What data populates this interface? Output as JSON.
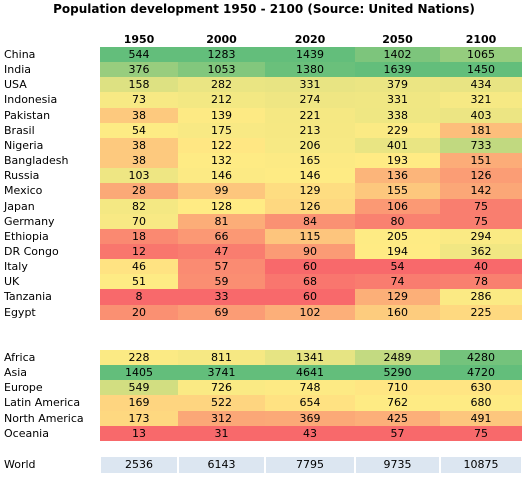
{
  "header": {
    "title": "Population development 1950 - 2100 (Source: United Nations)"
  },
  "table": {
    "columns": [
      "1950",
      "2000",
      "2020",
      "2050",
      "2100"
    ],
    "countries": [
      [
        "China",
        544,
        1283,
        1439,
        1402,
        1065
      ],
      [
        "India",
        376,
        1053,
        1380,
        1639,
        1450
      ],
      [
        "USA",
        158,
        282,
        331,
        379,
        434
      ],
      [
        "Indonesia",
        73,
        212,
        274,
        331,
        321
      ],
      [
        "Pakistan",
        38,
        139,
        221,
        338,
        403
      ],
      [
        "Brasil",
        54,
        175,
        213,
        229,
        181
      ],
      [
        "Nigeria",
        38,
        122,
        206,
        401,
        733
      ],
      [
        "Bangladesh",
        38,
        132,
        165,
        193,
        151
      ],
      [
        "Russia",
        103,
        146,
        146,
        136,
        126
      ],
      [
        "Mexico",
        28,
        99,
        129,
        155,
        142
      ],
      [
        "Japan",
        82,
        128,
        126,
        106,
        75
      ],
      [
        "Germany",
        70,
        81,
        84,
        80,
        75
      ],
      [
        "Ethiopia",
        18,
        66,
        115,
        205,
        294
      ],
      [
        "DR Congo",
        12,
        47,
        90,
        194,
        362
      ],
      [
        "Italy",
        46,
        57,
        60,
        54,
        40
      ],
      [
        "UK",
        51,
        59,
        68,
        74,
        78
      ],
      [
        "Tanzania",
        8,
        33,
        60,
        129,
        286
      ],
      [
        "Egypt",
        20,
        69,
        102,
        160,
        225
      ]
    ],
    "regions": [
      [
        "Africa",
        228,
        811,
        1341,
        2489,
        4280
      ],
      [
        "Asia",
        1405,
        3741,
        4641,
        5290,
        4720
      ],
      [
        "Europe",
        549,
        726,
        748,
        710,
        630
      ],
      [
        "Latin America",
        169,
        522,
        654,
        762,
        680
      ],
      [
        "North America",
        173,
        312,
        369,
        425,
        491
      ],
      [
        "Oceania",
        13,
        31,
        43,
        57,
        75
      ]
    ],
    "world": [
      "World",
      2536,
      6143,
      7795,
      9735,
      10875
    ]
  }
}
